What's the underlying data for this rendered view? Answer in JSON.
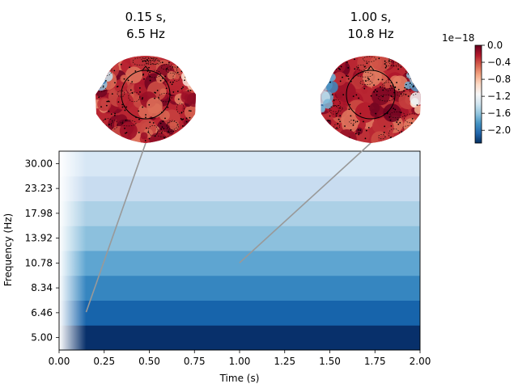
{
  "chart_data": {
    "type": "heatmap",
    "title": "",
    "xlabel": "Time (s)",
    "ylabel": "Frequency (Hz)",
    "xlim": [
      0.0,
      2.0
    ],
    "x_ticks": [
      "0.00",
      "0.25",
      "0.50",
      "0.75",
      "1.00",
      "1.25",
      "1.50",
      "1.75",
      "2.00"
    ],
    "x_tick_values": [
      0.0,
      0.25,
      0.5,
      0.75,
      1.0,
      1.25,
      1.5,
      1.75,
      2.0
    ],
    "y_ticks": [
      "5.00",
      "6.46",
      "8.34",
      "10.78",
      "13.92",
      "17.98",
      "23.23",
      "30.00"
    ],
    "rows": [
      {
        "freq": 5.0,
        "level": 1.0
      },
      {
        "freq": 6.46,
        "level": 0.8
      },
      {
        "freq": 8.34,
        "level": 0.67
      },
      {
        "freq": 10.78,
        "level": 0.54
      },
      {
        "freq": 13.92,
        "level": 0.42
      },
      {
        "freq": 17.98,
        "level": 0.33
      },
      {
        "freq": 23.23,
        "level": 0.24
      },
      {
        "freq": 30.0,
        "level": 0.16
      }
    ],
    "onset_fade_end_s": 0.15,
    "colormap": "RdBu_r",
    "colorbar": {
      "exponent_label": "1e−18",
      "range": [
        -2.3,
        0.0
      ],
      "ticks": [
        "0.0",
        "−0.4",
        "−0.8",
        "−1.2",
        "−1.6",
        "−2.0"
      ],
      "tick_values": [
        0.0,
        -0.4,
        -0.8,
        -1.2,
        -1.6,
        -2.0
      ]
    },
    "topomaps": [
      {
        "title_time": "0.15 s,",
        "title_freq": "6.5 Hz",
        "time": 0.15,
        "freq": 6.5,
        "cap": [
          0.14,
          0.4,
          0.62,
          0.85
        ]
      },
      {
        "title_time": "1.00 s,",
        "title_freq": "10.8 Hz",
        "time": 1.0,
        "freq": 10.8,
        "cap": [
          0.12,
          0.12,
          0.16,
          0.46
        ]
      }
    ],
    "connector_color": "#999999"
  }
}
